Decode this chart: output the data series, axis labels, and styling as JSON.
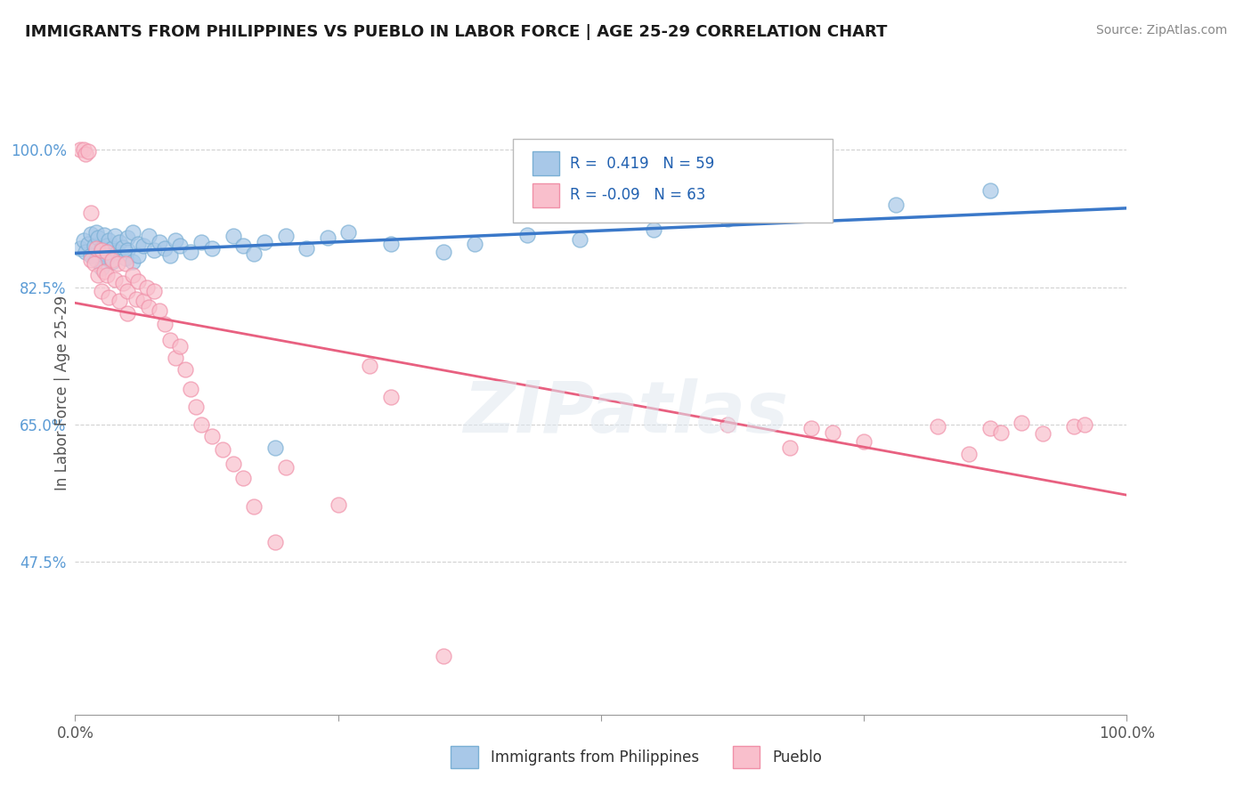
{
  "title": "IMMIGRANTS FROM PHILIPPINES VS PUEBLO IN LABOR FORCE | AGE 25-29 CORRELATION CHART",
  "source": "Source: ZipAtlas.com",
  "ylabel": "In Labor Force | Age 25-29",
  "ytick_labels": [
    "47.5%",
    "65.0%",
    "82.5%",
    "100.0%"
  ],
  "ytick_values": [
    0.475,
    0.65,
    0.825,
    1.0
  ],
  "xlim": [
    0.0,
    1.0
  ],
  "ylim": [
    0.28,
    1.1
  ],
  "legend_blue_label": "Immigrants from Philippines",
  "legend_pink_label": "Pueblo",
  "R_blue": 0.419,
  "N_blue": 59,
  "R_pink": -0.09,
  "N_pink": 63,
  "blue_color": "#a8c8e8",
  "blue_edge_color": "#7aafd4",
  "pink_color": "#f9bfcc",
  "pink_edge_color": "#f090a8",
  "blue_line_color": "#3a78c9",
  "pink_line_color": "#e86080",
  "blue_scatter": [
    [
      0.005,
      0.875
    ],
    [
      0.008,
      0.885
    ],
    [
      0.01,
      0.87
    ],
    [
      0.012,
      0.88
    ],
    [
      0.015,
      0.893
    ],
    [
      0.015,
      0.865
    ],
    [
      0.018,
      0.878
    ],
    [
      0.02,
      0.895
    ],
    [
      0.02,
      0.86
    ],
    [
      0.022,
      0.888
    ],
    [
      0.025,
      0.875
    ],
    [
      0.025,
      0.85
    ],
    [
      0.028,
      0.892
    ],
    [
      0.03,
      0.878
    ],
    [
      0.03,
      0.862
    ],
    [
      0.032,
      0.885
    ],
    [
      0.035,
      0.875
    ],
    [
      0.035,
      0.858
    ],
    [
      0.038,
      0.89
    ],
    [
      0.04,
      0.87
    ],
    [
      0.042,
      0.882
    ],
    [
      0.045,
      0.876
    ],
    [
      0.048,
      0.862
    ],
    [
      0.05,
      0.888
    ],
    [
      0.05,
      0.872
    ],
    [
      0.055,
      0.895
    ],
    [
      0.055,
      0.858
    ],
    [
      0.06,
      0.88
    ],
    [
      0.06,
      0.865
    ],
    [
      0.065,
      0.878
    ],
    [
      0.07,
      0.89
    ],
    [
      0.075,
      0.872
    ],
    [
      0.08,
      0.882
    ],
    [
      0.085,
      0.875
    ],
    [
      0.09,
      0.865
    ],
    [
      0.095,
      0.885
    ],
    [
      0.1,
      0.878
    ],
    [
      0.11,
      0.87
    ],
    [
      0.12,
      0.882
    ],
    [
      0.13,
      0.875
    ],
    [
      0.15,
      0.89
    ],
    [
      0.16,
      0.878
    ],
    [
      0.17,
      0.868
    ],
    [
      0.18,
      0.882
    ],
    [
      0.19,
      0.62
    ],
    [
      0.2,
      0.89
    ],
    [
      0.22,
      0.875
    ],
    [
      0.24,
      0.888
    ],
    [
      0.26,
      0.895
    ],
    [
      0.3,
      0.88
    ],
    [
      0.35,
      0.87
    ],
    [
      0.38,
      0.88
    ],
    [
      0.43,
      0.892
    ],
    [
      0.48,
      0.886
    ],
    [
      0.55,
      0.898
    ],
    [
      0.62,
      0.912
    ],
    [
      0.7,
      0.922
    ],
    [
      0.78,
      0.93
    ],
    [
      0.87,
      0.948
    ]
  ],
  "pink_scatter": [
    [
      0.005,
      1.0
    ],
    [
      0.008,
      1.0
    ],
    [
      0.01,
      0.995
    ],
    [
      0.012,
      0.998
    ],
    [
      0.015,
      0.92
    ],
    [
      0.015,
      0.86
    ],
    [
      0.018,
      0.855
    ],
    [
      0.02,
      0.875
    ],
    [
      0.022,
      0.84
    ],
    [
      0.025,
      0.872
    ],
    [
      0.025,
      0.82
    ],
    [
      0.028,
      0.845
    ],
    [
      0.03,
      0.87
    ],
    [
      0.03,
      0.84
    ],
    [
      0.032,
      0.812
    ],
    [
      0.035,
      0.86
    ],
    [
      0.038,
      0.835
    ],
    [
      0.04,
      0.855
    ],
    [
      0.042,
      0.808
    ],
    [
      0.045,
      0.83
    ],
    [
      0.048,
      0.855
    ],
    [
      0.05,
      0.82
    ],
    [
      0.05,
      0.792
    ],
    [
      0.055,
      0.84
    ],
    [
      0.058,
      0.81
    ],
    [
      0.06,
      0.832
    ],
    [
      0.065,
      0.808
    ],
    [
      0.068,
      0.825
    ],
    [
      0.07,
      0.8
    ],
    [
      0.075,
      0.82
    ],
    [
      0.08,
      0.795
    ],
    [
      0.085,
      0.778
    ],
    [
      0.09,
      0.758
    ],
    [
      0.095,
      0.735
    ],
    [
      0.1,
      0.75
    ],
    [
      0.105,
      0.72
    ],
    [
      0.11,
      0.695
    ],
    [
      0.115,
      0.672
    ],
    [
      0.12,
      0.65
    ],
    [
      0.13,
      0.635
    ],
    [
      0.14,
      0.618
    ],
    [
      0.15,
      0.6
    ],
    [
      0.16,
      0.582
    ],
    [
      0.17,
      0.545
    ],
    [
      0.19,
      0.5
    ],
    [
      0.2,
      0.595
    ],
    [
      0.25,
      0.548
    ],
    [
      0.28,
      0.725
    ],
    [
      0.3,
      0.685
    ],
    [
      0.35,
      0.355
    ],
    [
      0.62,
      0.65
    ],
    [
      0.68,
      0.62
    ],
    [
      0.7,
      0.645
    ],
    [
      0.72,
      0.64
    ],
    [
      0.75,
      0.628
    ],
    [
      0.82,
      0.648
    ],
    [
      0.85,
      0.612
    ],
    [
      0.87,
      0.645
    ],
    [
      0.88,
      0.64
    ],
    [
      0.9,
      0.652
    ],
    [
      0.92,
      0.638
    ],
    [
      0.95,
      0.648
    ],
    [
      0.96,
      0.65
    ]
  ]
}
